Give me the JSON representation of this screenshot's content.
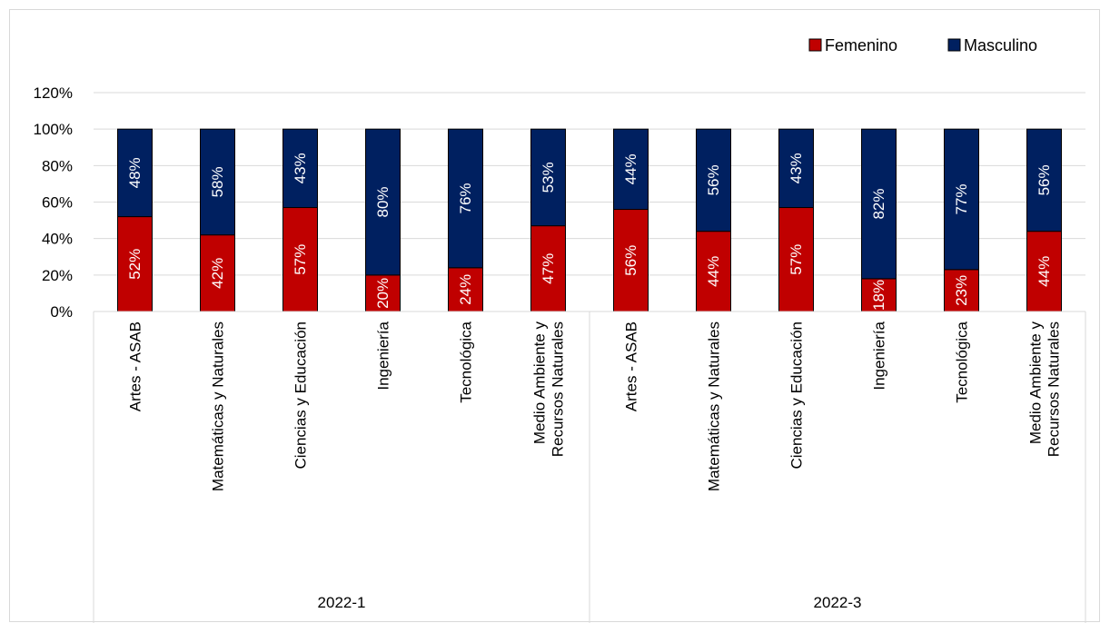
{
  "chart_data": {
    "type": "bar",
    "stacked": true,
    "stack_mode": "percent",
    "groups": [
      {
        "label": "2022-1",
        "categories": [
          "Artes - ASAB",
          "Matemáticas y Naturales",
          "Ciencias y Educación",
          "Ingeniería",
          "Tecnológica",
          "Medio Ambiente y Recursos Naturales"
        ]
      },
      {
        "label": "2022-3",
        "categories": [
          "Artes - ASAB",
          "Matemáticas y Naturales",
          "Ciencias y Educación",
          "Ingeniería",
          "Tecnológica",
          "Medio Ambiente y Recursos Naturales"
        ]
      }
    ],
    "series": [
      {
        "name": "Femenino",
        "color": "#c00000",
        "values": [
          52,
          42,
          57,
          20,
          24,
          47,
          56,
          44,
          57,
          18,
          23,
          44
        ],
        "labels": [
          "52%",
          "42%",
          "57%",
          "20%",
          "24%",
          "47%",
          "56%",
          "44%",
          "57%",
          "18%",
          "23%",
          "44%"
        ]
      },
      {
        "name": "Masculino",
        "color": "#002060",
        "values": [
          48,
          58,
          43,
          80,
          76,
          53,
          44,
          56,
          43,
          82,
          77,
          56
        ],
        "labels": [
          "48%",
          "58%",
          "43%",
          "80%",
          "76%",
          "53%",
          "44%",
          "56%",
          "43%",
          "82%",
          "77%",
          "56%"
        ]
      }
    ],
    "y_ticks": [
      "0%",
      "20%",
      "40%",
      "60%",
      "80%",
      "100%",
      "120%"
    ],
    "ylim": [
      0,
      120
    ],
    "grid": true,
    "legend_position": "top-right",
    "title": "",
    "xlabel": "",
    "ylabel": ""
  }
}
